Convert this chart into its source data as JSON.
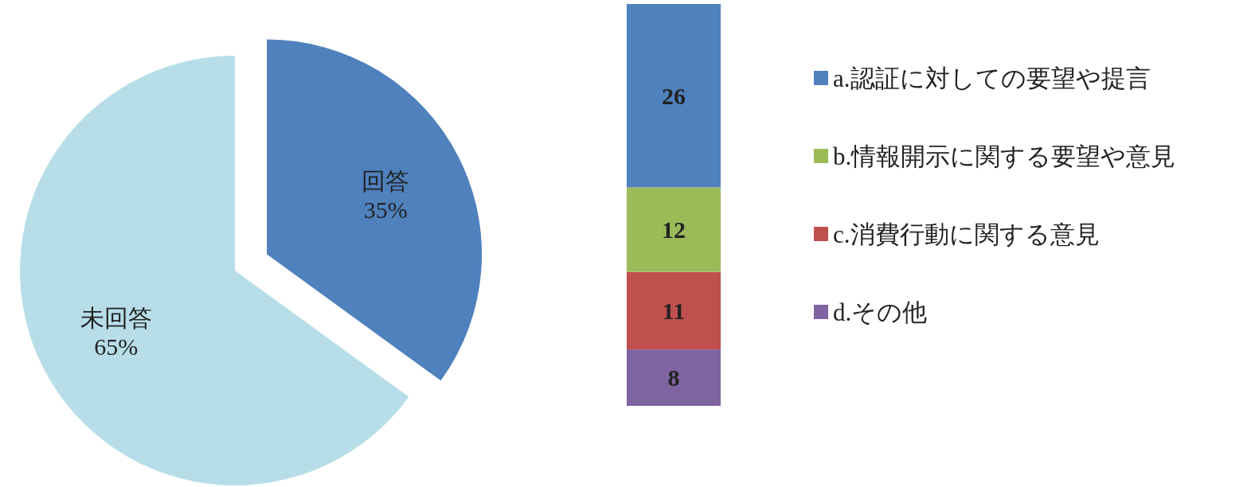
{
  "chart_data": [
    {
      "type": "pie",
      "categories": [
        "回答",
        "未回答"
      ],
      "values": [
        35,
        65
      ],
      "colors": [
        "#4f81bd",
        "#b7dee8"
      ],
      "value_labels": [
        "35%",
        "65%"
      ]
    },
    {
      "type": "bar",
      "stacked": true,
      "categories": [
        null
      ],
      "data_labels": true,
      "legend": "right",
      "series": [
        {
          "name": "d.その他",
          "color": "#8064a2",
          "values": [
            8
          ]
        },
        {
          "name": "c.消費行動に関する意見",
          "color": "#c0504d",
          "values": [
            11
          ]
        },
        {
          "name": "b.情報開示に関する要望や意見",
          "color": "#9bbb59",
          "values": [
            12
          ]
        },
        {
          "name": "a.認証に対しての要望や提言",
          "color": "#4f81bd",
          "values": [
            26
          ]
        }
      ]
    }
  ]
}
